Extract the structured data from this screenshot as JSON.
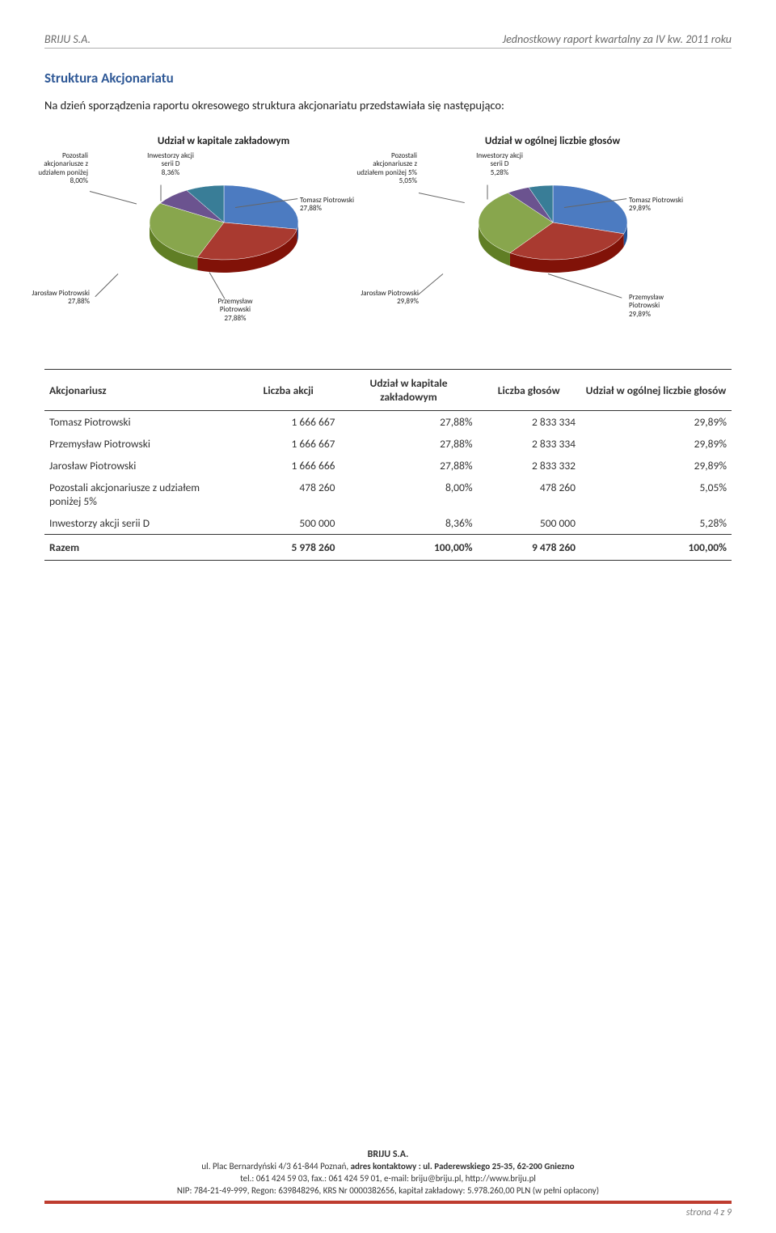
{
  "header": {
    "left": "BRIJU S.A.",
    "right": "Jednostkowy raport kwartalny za IV kw. 2011 roku"
  },
  "section_title": "Struktura Akcjonariatu",
  "intro": "Na dzień sporządzenia raportu okresowego struktura akcjonariatu przedstawiała się następująco:",
  "chart1": {
    "title": "Udział w kapitale zakładowym",
    "title_fontsize": 13,
    "slices": [
      {
        "label_lines": [
          "Tomasz Piotrowski",
          "27,88%"
        ],
        "value": 27.88,
        "fill": "#4c7bc1"
      },
      {
        "label_lines": [
          "Przemysław",
          "Piotrowski",
          "27,88%"
        ],
        "value": 27.88,
        "fill": "#a93a30"
      },
      {
        "label_lines": [
          "Jarosław Piotrowski",
          "27,88%"
        ],
        "value": 27.88,
        "fill": "#88a64d"
      },
      {
        "label_lines": [
          "Pozostali",
          "akcjonariusze z",
          "udziałem poniżej",
          "8,00%"
        ],
        "value": 8.0,
        "fill": "#6b538f"
      },
      {
        "label_lines": [
          "Inwestorzy akcji",
          "serii D",
          "8,36%"
        ],
        "value": 8.36,
        "fill": "#397d97"
      }
    ],
    "background_color": "#ffffff"
  },
  "chart2": {
    "title": "Udział w ogólnej liczbie głosów",
    "title_fontsize": 13,
    "slices": [
      {
        "label_lines": [
          "Tomasz Piotrowski",
          "29,89%"
        ],
        "value": 29.89,
        "fill": "#4c7bc1"
      },
      {
        "label_lines": [
          "Przemysław",
          "Piotrowski",
          "29,89%"
        ],
        "value": 29.89,
        "fill": "#a93a30"
      },
      {
        "label_lines": [
          "Jarosław Piotrowski",
          "29,89%"
        ],
        "value": 29.89,
        "fill": "#88a64d"
      },
      {
        "label_lines": [
          "Pozostali",
          "akcjonariusze z",
          "udziałem poniżej 5%",
          "5,05%"
        ],
        "value": 5.05,
        "fill": "#6b538f"
      },
      {
        "label_lines": [
          "Inwestorzy akcji",
          "serii D",
          "5,28%"
        ],
        "value": 5.28,
        "fill": "#397d97"
      }
    ],
    "background_color": "#ffffff"
  },
  "table": {
    "columns": [
      "Akcjonariusz",
      "Liczba akcji",
      "Udział w kapitale zakładowym",
      "Liczba głosów",
      "Udział w ogólnej liczbie głosów"
    ],
    "rows": [
      [
        "Tomasz Piotrowski",
        "1 666 667",
        "27,88%",
        "2 833 334",
        "29,89%"
      ],
      [
        "Przemysław Piotrowski",
        "1 666 667",
        "27,88%",
        "2 833 334",
        "29,89%"
      ],
      [
        "Jarosław Piotrowski",
        "1 666 666",
        "27,88%",
        "2 833 332",
        "29,89%"
      ],
      [
        "Pozostali akcjonariusze z udziałem poniżej 5%",
        "478 260",
        "8,00%",
        "478 260",
        "5,05%"
      ],
      [
        "Inwestorzy akcji serii D",
        "500 000",
        "8,36%",
        "500 000",
        "5,28%"
      ]
    ],
    "total": [
      "Razem",
      "5 978 260",
      "100,00%",
      "9 478 260",
      "100,00%"
    ],
    "col_widths": [
      "28%",
      "15%",
      "20%",
      "15%",
      "22%"
    ]
  },
  "footer": {
    "company": "BRIJU S.A.",
    "line1a": "ul. Plac Bernardyński 4/3  61-844 Poznań, ",
    "line1b": "adres kontaktowy : ul. Paderewskiego 25-35, 62-200 Gniezno",
    "line2": "tel.: 061 424 59 03, fax.: 061 424 59 01, e-mail: briju@briju.pl, http://www.briju.pl",
    "line3": "NIP: 784-21-49-999, Regon: 639848296, KRS Nr 0000382656, kapitał zakładowy: 5.978.260,00 PLN (w pełni opłacony)",
    "rule_color": "#be3c2f",
    "page": "strona 4 z 9"
  }
}
